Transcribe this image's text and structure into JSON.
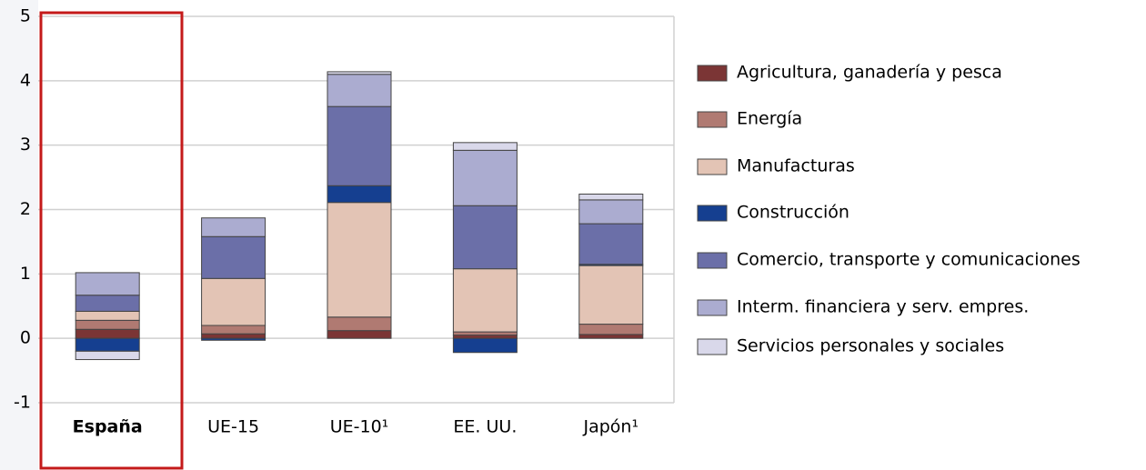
{
  "chart_data": {
    "type": "stacked_bar",
    "categories": [
      "España",
      "UE-15",
      "UE-10¹",
      "EE. UU.",
      "Japón¹"
    ],
    "series": [
      {
        "name": "Agricultura, ganadería y pesca",
        "color": "#7b3535",
        "values": [
          0.14,
          0.07,
          0.12,
          0.05,
          0.06
        ]
      },
      {
        "name": "Energía",
        "color": "#b07a72",
        "values": [
          0.14,
          0.13,
          0.21,
          0.05,
          0.16
        ]
      },
      {
        "name": "Manufacturas",
        "color": "#e3c4b5",
        "values": [
          0.14,
          0.73,
          1.78,
          0.98,
          0.91
        ]
      },
      {
        "name": "Construcción",
        "color": "#153f90",
        "values": [
          -0.2,
          -0.03,
          0.26,
          -0.22,
          0.02
        ]
      },
      {
        "name": "Comercio, transporte y comunicaciones",
        "color": "#6b6fa8",
        "values": [
          0.25,
          0.65,
          1.23,
          0.98,
          0.63
        ]
      },
      {
        "name": "Interm. financiera y serv. empres.",
        "color": "#abacd0",
        "values": [
          0.35,
          0.29,
          0.5,
          0.86,
          0.37
        ]
      },
      {
        "name": "Servicios personales y sociales",
        "color": "#d9d8ea",
        "values": [
          -0.13,
          0,
          0.04,
          0.12,
          0.09
        ]
      }
    ],
    "ylim": [
      -1,
      5
    ],
    "yticks": [
      -1,
      0,
      1,
      2,
      3,
      4,
      5
    ],
    "grid": true,
    "legend": "right"
  }
}
